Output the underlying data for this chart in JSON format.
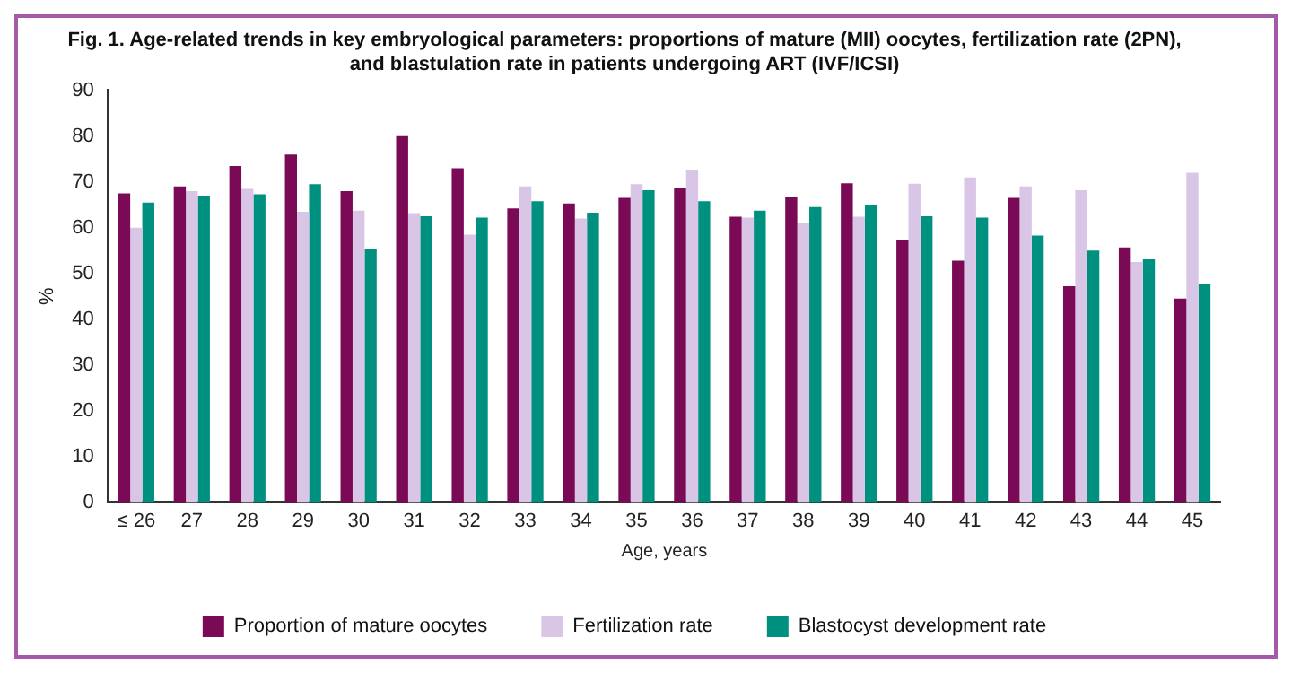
{
  "chart_data": {
    "type": "bar",
    "title": "Fig. 1. Age-related trends in key embryological parameters: proportions of mature (MII) oocytes, fertilization rate (2PN),\nand blastulation rate in patients undergoing ART (IVF/ICSI)",
    "xlabel": "Age, years",
    "ylabel": "%",
    "categories": [
      "≤ 26",
      "27",
      "28",
      "29",
      "30",
      "31",
      "32",
      "33",
      "34",
      "35",
      "36",
      "37",
      "38",
      "39",
      "40",
      "41",
      "42",
      "43",
      "44",
      "45"
    ],
    "series": [
      {
        "name": "Proportion of mature oocytes",
        "color": "#7b0a56",
        "values": [
          67.5,
          69,
          73.5,
          76,
          68,
          80,
          73,
          64.2,
          65.3,
          66.5,
          68.7,
          62.4,
          66.7,
          69.7,
          57.4,
          52.8,
          66.5,
          47.2,
          55.7,
          44.5
        ]
      },
      {
        "name": "Fertilization rate",
        "color": "#d9c6e6",
        "values": [
          60,
          68,
          68.5,
          63.5,
          63.7,
          63.2,
          58.5,
          69,
          62,
          69.5,
          72.5,
          62.2,
          61,
          62.4,
          69.6,
          71,
          69,
          68.2,
          52.5,
          72
        ]
      },
      {
        "name": "Blastocyst development rate",
        "color": "#009080",
        "values": [
          65.5,
          67,
          67.3,
          69.5,
          55.3,
          62.5,
          62.2,
          65.8,
          63.3,
          68.2,
          65.8,
          63.7,
          64.5,
          65,
          62.5,
          62.2,
          58.3,
          55,
          53.1,
          47.6
        ]
      }
    ],
    "ylim": [
      0,
      90
    ],
    "yticks": [
      0,
      10,
      20,
      30,
      40,
      50,
      60,
      70,
      80,
      90
    ],
    "grid": false,
    "legend": "bottom"
  }
}
